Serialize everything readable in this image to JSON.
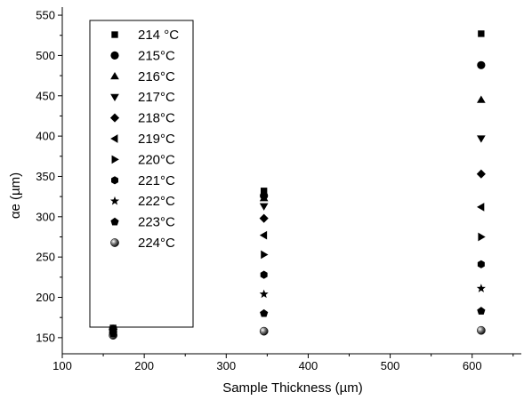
{
  "chart_data": {
    "type": "scatter",
    "title": "",
    "xlabel": "Sample Thickness (µm)",
    "ylabel_greek": "α",
    "ylabel_rest": "e (µm)",
    "xlim": [
      100,
      660
    ],
    "ylim": [
      130,
      560
    ],
    "xticks": [
      100,
      200,
      300,
      400,
      500,
      600
    ],
    "yticks": [
      150,
      200,
      250,
      300,
      350,
      400,
      450,
      500,
      550
    ],
    "grid": false,
    "legend_position": "top-left",
    "series": [
      {
        "name": "214 °C",
        "marker": "square",
        "x": [
          162,
          346,
          611
        ],
        "y": [
          162,
          332,
          527
        ]
      },
      {
        "name": "215°C",
        "marker": "circle",
        "x": [
          162,
          346,
          611
        ],
        "y": [
          161,
          326,
          488
        ]
      },
      {
        "name": "216°C",
        "marker": "triangle-up",
        "x": [
          162,
          346,
          611
        ],
        "y": [
          160,
          323,
          445
        ]
      },
      {
        "name": "217°C",
        "marker": "triangle-down",
        "x": [
          162,
          346,
          611
        ],
        "y": [
          160,
          313,
          397
        ]
      },
      {
        "name": "218°C",
        "marker": "diamond",
        "x": [
          162,
          346,
          611
        ],
        "y": [
          160,
          298,
          353
        ]
      },
      {
        "name": "219°C",
        "marker": "triangle-left",
        "x": [
          162,
          346,
          611
        ],
        "y": [
          159,
          277,
          312
        ]
      },
      {
        "name": "220°C",
        "marker": "triangle-right",
        "x": [
          162,
          346,
          611
        ],
        "y": [
          158,
          253,
          275
        ]
      },
      {
        "name": "221°C",
        "marker": "hexagon",
        "x": [
          162,
          346,
          611
        ],
        "y": [
          157,
          228,
          241
        ]
      },
      {
        "name": "222°C",
        "marker": "star",
        "x": [
          162,
          346,
          611
        ],
        "y": [
          156,
          204,
          211
        ]
      },
      {
        "name": "223°C",
        "marker": "pentagon",
        "x": [
          162,
          346,
          611
        ],
        "y": [
          155,
          180,
          183
        ]
      },
      {
        "name": "224°C",
        "marker": "sphere",
        "x": [
          162,
          346,
          611
        ],
        "y": [
          153,
          158,
          159
        ]
      }
    ]
  }
}
